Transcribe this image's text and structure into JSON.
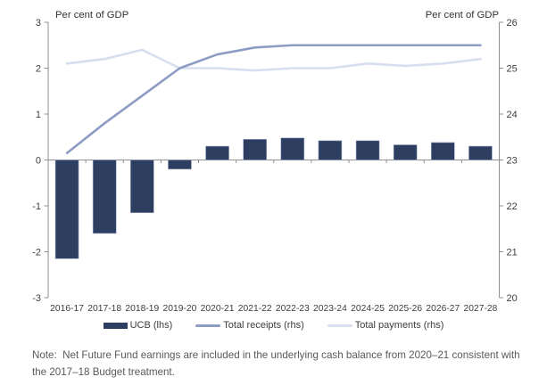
{
  "figure": {
    "left_axis_title": "Per cent of GDP",
    "right_axis_title": "Per cent of GDP",
    "note": "Note:  Net Future Fund earnings are included in the underlying cash balance from 2020–21 consistent with the 2017–18 Budget treatment."
  },
  "legend": [
    {
      "label": "UCB (lhs)",
      "type": "bar",
      "color": "#2d3e61"
    },
    {
      "label": "Total receipts (rhs)",
      "type": "line",
      "color": "#8d9cc4"
    },
    {
      "label": "Total payments (rhs)",
      "type": "line",
      "color": "#d7dfef"
    }
  ],
  "colors": {
    "bar": "#2d3e61",
    "bar_edge": "#9aa6bf",
    "receipts_line": "#8d9cc4",
    "payments_line": "#d7dfef",
    "axis": "#909090",
    "tick_text": "#3d3d3d",
    "title_text": "#333333",
    "note_text": "#595959"
  },
  "chart_data": {
    "type": "bar+line combo",
    "categories": [
      "2016-17",
      "2017-18",
      "2018-19",
      "2019-20",
      "2020-21",
      "2021-22",
      "2022-23",
      "2023-24",
      "2024-25",
      "2025-26",
      "2026-27",
      "2027-28"
    ],
    "series": [
      {
        "name": "UCB (lhs)",
        "type": "bar",
        "axis": "left",
        "color": "#2d3e61",
        "values": [
          -2.15,
          -1.6,
          -1.15,
          -0.2,
          0.3,
          0.45,
          0.48,
          0.42,
          0.42,
          0.33,
          0.38,
          0.3
        ]
      },
      {
        "name": "Total receipts (rhs)",
        "type": "line",
        "axis": "right",
        "color": "#8d9cc4",
        "values": [
          23.15,
          23.8,
          24.4,
          25.0,
          25.3,
          25.45,
          25.5,
          25.5,
          25.5,
          25.5,
          25.5,
          25.5
        ]
      },
      {
        "name": "Total payments (rhs)",
        "type": "line",
        "axis": "right",
        "color": "#d7dfef",
        "values": [
          25.1,
          25.2,
          25.4,
          25.0,
          25.0,
          24.95,
          25.0,
          25.0,
          25.1,
          25.05,
          25.1,
          25.2
        ]
      }
    ],
    "left_axis": {
      "title": "Per cent of GDP",
      "min": -3,
      "max": 3,
      "ticks": [
        3,
        2,
        1,
        0,
        -1,
        -2,
        -3
      ]
    },
    "right_axis": {
      "title": "Per cent of GDP",
      "min": 20,
      "max": 26,
      "ticks": [
        26,
        25,
        24,
        23,
        22,
        21,
        20
      ]
    },
    "grid": false,
    "legend_position": "bottom",
    "note": "Note:  Net Future Fund earnings are included in the underlying cash balance from 2020–21 consistent with the 2017–18 Budget treatment."
  }
}
